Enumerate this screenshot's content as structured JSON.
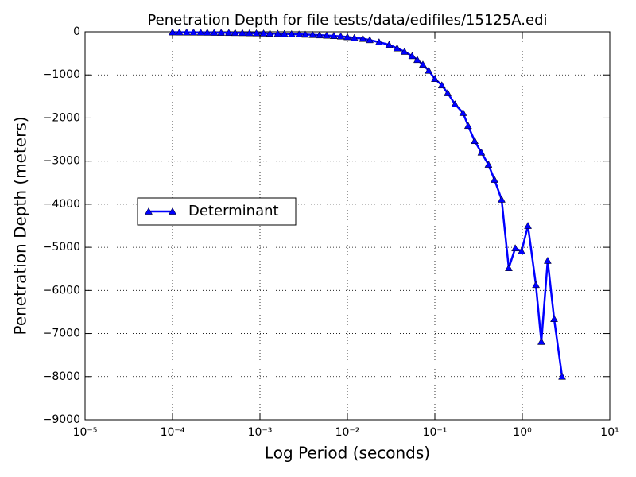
{
  "chart_data": {
    "type": "line",
    "title": "Penetration Depth for file tests/data/edifiles/15125A.edi",
    "xlabel": "Log Period (seconds)",
    "ylabel": "Penetration Depth (meters)",
    "xscale": "log",
    "grid": true,
    "legend": "center left",
    "xlim": [
      1e-05,
      10
    ],
    "ylim": [
      -9000,
      0
    ],
    "xticks": [
      {
        "value": 1e-05,
        "label": "10⁻⁵"
      },
      {
        "value": 0.0001,
        "label": "10⁻⁴"
      },
      {
        "value": 0.001,
        "label": "10⁻³"
      },
      {
        "value": 0.01,
        "label": "10⁻²"
      },
      {
        "value": 0.1,
        "label": "10⁻¹"
      },
      {
        "value": 1,
        "label": "10⁰"
      },
      {
        "value": 10,
        "label": "10¹"
      }
    ],
    "yticks": [
      {
        "value": -9000,
        "label": "−9000"
      },
      {
        "value": -8000,
        "label": "−8000"
      },
      {
        "value": -7000,
        "label": "−7000"
      },
      {
        "value": -6000,
        "label": "−6000"
      },
      {
        "value": -5000,
        "label": "−5000"
      },
      {
        "value": -4000,
        "label": "−4000"
      },
      {
        "value": -3000,
        "label": "−3000"
      },
      {
        "value": -2000,
        "label": "−2000"
      },
      {
        "value": -1000,
        "label": "−1000"
      },
      0
    ],
    "x": [
      0.0001,
      0.00012,
      0.000145,
      0.000174,
      0.00021,
      0.00025,
      0.0003,
      0.00036,
      0.00044,
      0.00052,
      0.00063,
      0.00076,
      0.00091,
      0.0011,
      0.0013,
      0.0016,
      0.0019,
      0.0023,
      0.0028,
      0.0033,
      0.004,
      0.0048,
      0.0058,
      0.007,
      0.0084,
      0.01,
      0.012,
      0.015,
      0.018,
      0.023,
      0.03,
      0.037,
      0.045,
      0.055,
      0.063,
      0.073,
      0.085,
      0.1,
      0.12,
      0.14,
      0.17,
      0.21,
      0.24,
      0.285,
      0.34,
      0.41,
      0.48,
      0.58,
      0.7,
      0.83,
      0.98,
      1.16,
      1.43,
      1.65,
      1.95,
      2.31,
      2.85
    ],
    "series": [
      {
        "name": "Determinant",
        "color": "#0000ff",
        "marker": "triangle",
        "values": [
          -10,
          -11,
          -12,
          -13,
          -15,
          -16,
          -18,
          -20,
          -22,
          -24,
          -26,
          -29,
          -32,
          -35,
          -39,
          -43,
          -47,
          -52,
          -58,
          -63,
          -70,
          -78,
          -85,
          -95,
          -105,
          -120,
          -140,
          -160,
          -190,
          -240,
          -300,
          -380,
          -460,
          -560,
          -650,
          -760,
          -900,
          -1090,
          -1240,
          -1420,
          -1680,
          -1880,
          -2180,
          -2530,
          -2800,
          -3080,
          -3430,
          -3890,
          -5480,
          -5020,
          -5090,
          -4500,
          -5870,
          -7190,
          -5310,
          -6660,
          -8000
        ]
      }
    ]
  }
}
